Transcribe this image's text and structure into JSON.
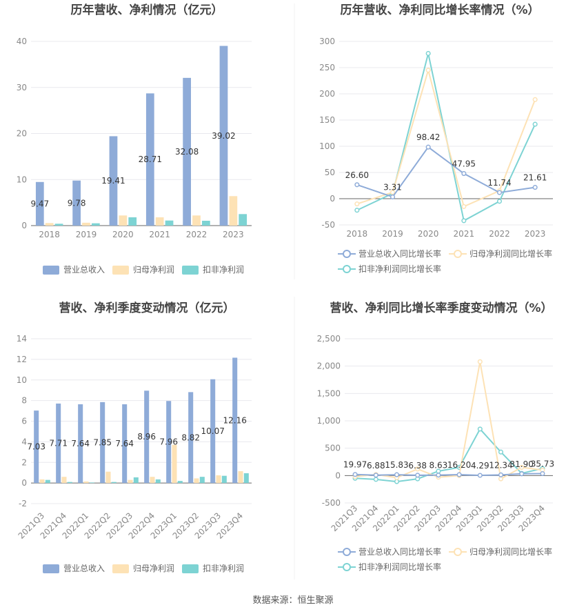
{
  "source": "数据来源：恒生聚源",
  "chart_data": [
    {
      "type": "bar",
      "title": "历年营收、净利情况（亿元）",
      "categories": [
        "2018",
        "2019",
        "2020",
        "2021",
        "2022",
        "2023"
      ],
      "ylim": [
        0,
        40
      ],
      "yticks": [
        "0",
        "10",
        "20",
        "30",
        "40"
      ],
      "legend_position": "bottom",
      "series": [
        {
          "name": "营业总收入",
          "color": "#8eabd8",
          "values": [
            9.47,
            9.78,
            19.41,
            28.71,
            32.08,
            39.02
          ],
          "labels": [
            "9.47",
            "9.78",
            "19.41",
            "28.71",
            "32.08",
            "39.02"
          ]
        },
        {
          "name": "归母净利润",
          "color": "#fde2b5",
          "values": [
            0.55,
            0.62,
            2.2,
            1.8,
            2.2,
            6.4
          ]
        },
        {
          "name": "扣非净利润",
          "color": "#7dd3d3",
          "values": [
            0.4,
            0.5,
            1.8,
            1.1,
            1.05,
            2.5
          ]
        }
      ]
    },
    {
      "type": "line",
      "title": "历年营收、净利同比增长率情况（%）",
      "categories": [
        "2018",
        "2019",
        "2020",
        "2021",
        "2022",
        "2023"
      ],
      "ylim": [
        -50,
        300
      ],
      "yticks": [
        "-50",
        "0",
        "50",
        "100",
        "150",
        "200",
        "250",
        "300"
      ],
      "legend_position": "bottom",
      "series": [
        {
          "name": "营业总收入同比增长率",
          "color": "#8eabd8",
          "values": [
            26.6,
            3.31,
            98.42,
            47.95,
            11.74,
            21.61
          ],
          "labels": [
            "26.60",
            "3.31",
            "98.42",
            "47.95",
            "11.74",
            "21.61"
          ]
        },
        {
          "name": "归母净利润同比增长率",
          "color": "#fde2b5",
          "values": [
            -10,
            12,
            245,
            -15,
            15,
            189
          ]
        },
        {
          "name": "扣非净利润同比增长率",
          "color": "#7dd3d3",
          "values": [
            -22,
            10,
            277,
            -42,
            -5,
            142
          ]
        }
      ]
    },
    {
      "type": "bar",
      "title": "营收、净利季度变动情况（亿元）",
      "categories": [
        "2021Q3",
        "2021Q4",
        "2022Q1",
        "2022Q2",
        "2022Q3",
        "2022Q4",
        "2023Q1",
        "2023Q2",
        "2023Q3",
        "2023Q4"
      ],
      "ylim": [
        -2,
        14
      ],
      "yticks": [
        "-2",
        "0",
        "2",
        "4",
        "6",
        "8",
        "10",
        "12",
        "14"
      ],
      "legend_position": "bottom",
      "series": [
        {
          "name": "营业总收入",
          "color": "#8eabd8",
          "values": [
            7.03,
            7.71,
            7.64,
            7.85,
            7.64,
            8.96,
            7.96,
            8.82,
            10.07,
            12.16
          ],
          "labels": [
            "7.03",
            "7.71",
            "7.64",
            "7.85",
            "7.64",
            "8.96",
            "7.96",
            "8.82",
            "10.07",
            "12.16"
          ]
        },
        {
          "name": "归母净利润",
          "color": "#fde2b5",
          "values": [
            0.35,
            0.6,
            0.15,
            1.1,
            0.3,
            0.6,
            3.7,
            0.45,
            0.75,
            1.15
          ]
        },
        {
          "name": "扣非净利润",
          "color": "#7dd3d3",
          "values": [
            0.3,
            0.1,
            0.05,
            0.1,
            0.55,
            0.35,
            0.2,
            0.6,
            0.7,
            0.95
          ]
        }
      ]
    },
    {
      "type": "line",
      "title": "营收、净利同比增长率季度变动情况（%）",
      "categories": [
        "2021Q3",
        "2021Q4",
        "2022Q1",
        "2022Q2",
        "2022Q3",
        "2022Q4",
        "2023Q1",
        "2023Q2",
        "2023Q3",
        "2023Q4"
      ],
      "ylim": [
        -500,
        2500
      ],
      "yticks": [
        "-500",
        "0",
        "500",
        "1,000",
        "1,500",
        "2,000",
        "2,500"
      ],
      "legend_position": "bottom",
      "series": [
        {
          "name": "营业总收入同比增长率",
          "color": "#8eabd8",
          "values": [
            19.97,
            6.88,
            15.83,
            6.38,
            8.63,
            16.2,
            4.29,
            12.34,
            31.9,
            35.73
          ],
          "labels": [
            "19.97",
            "6.88",
            "15.83",
            "6.38",
            "8.63",
            "16.20",
            "4.29",
            "12.34",
            "31.90",
            "35.73"
          ]
        },
        {
          "name": "归母净利润同比增长率",
          "color": "#fde2b5",
          "values": [
            -20,
            20,
            -40,
            120,
            -30,
            0,
            2080,
            -60,
            150,
            100
          ]
        },
        {
          "name": "扣非净利润同比增长率",
          "color": "#7dd3d3",
          "values": [
            -50,
            -70,
            -110,
            -60,
            80,
            150,
            850,
            430,
            40,
            130
          ]
        }
      ]
    }
  ]
}
